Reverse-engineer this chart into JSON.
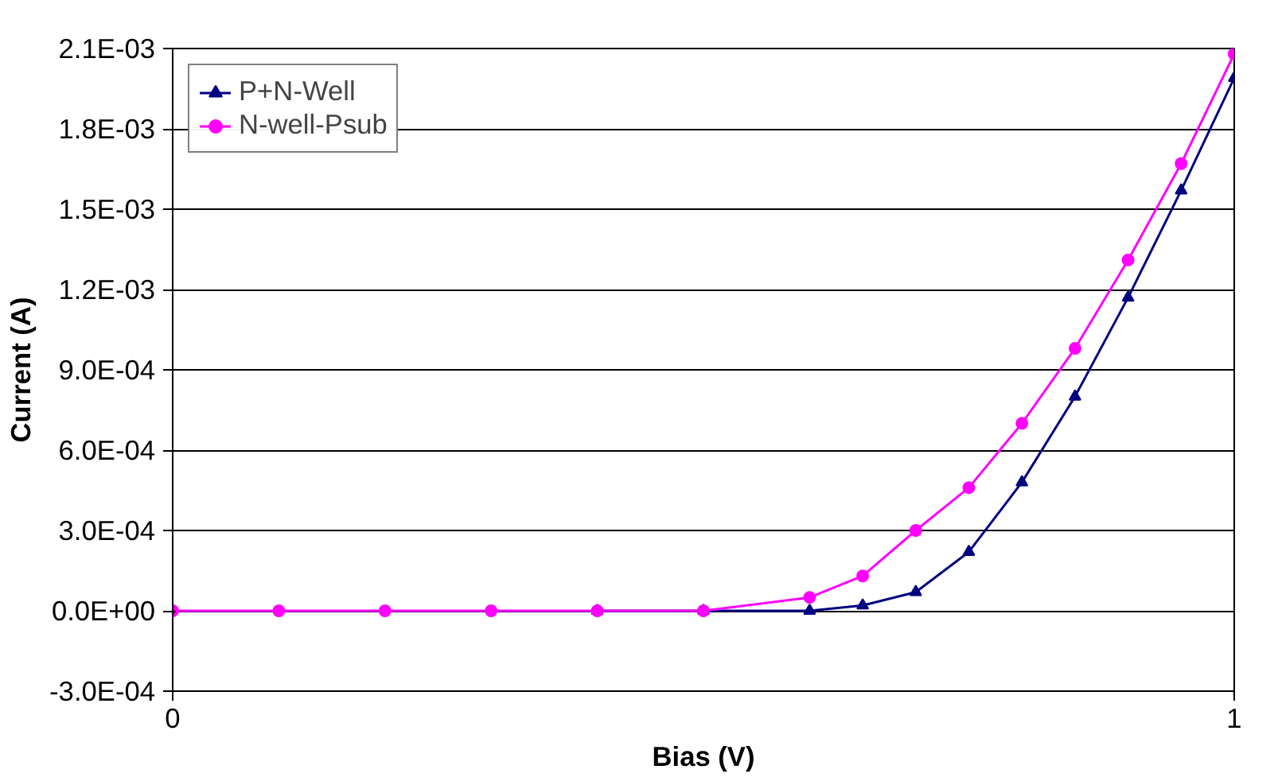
{
  "chart_data": {
    "type": "line",
    "xlabel": "Bias (V)",
    "ylabel": "Current (A)",
    "xlim": [
      0,
      1
    ],
    "xticks": [
      0,
      1
    ],
    "ylim": [
      -0.0003,
      0.0021
    ],
    "yticks": [
      {
        "value": -0.0003,
        "label": "-3.0E-04"
      },
      {
        "value": 0,
        "label": "0.0E+00"
      },
      {
        "value": 0.0003,
        "label": "3.0E-04"
      },
      {
        "value": 0.0006,
        "label": "6.0E-04"
      },
      {
        "value": 0.0009,
        "label": "9.0E-04"
      },
      {
        "value": 0.0012,
        "label": "1.2E-03"
      },
      {
        "value": 0.0015,
        "label": "1.5E-03"
      },
      {
        "value": 0.0018,
        "label": "1.8E-03"
      },
      {
        "value": 0.0021,
        "label": "2.1E-03"
      }
    ],
    "x": [
      0,
      0.1,
      0.2,
      0.3,
      0.4,
      0.5,
      0.6,
      0.65,
      0.7,
      0.75,
      0.8,
      0.85,
      0.9,
      0.95,
      1.0
    ],
    "grid": "y",
    "legend": "top left",
    "line_style": "solid",
    "series": [
      {
        "name": "P+N-Well",
        "color": "#000080",
        "marker": "triangle",
        "values": [
          null,
          null,
          null,
          null,
          0,
          0,
          0,
          2e-05,
          7e-05,
          0.00022,
          0.00048,
          0.0008,
          0.00117,
          0.00157,
          0.00199
        ]
      },
      {
        "name": "N-well-Psub",
        "color": "#ff00ff",
        "marker": "circle",
        "values": [
          0,
          0,
          0,
          0,
          0,
          0,
          5e-05,
          0.00013,
          0.0003,
          0.00046,
          0.0007,
          0.00098,
          0.00131,
          0.00167,
          0.00208
        ]
      }
    ]
  }
}
